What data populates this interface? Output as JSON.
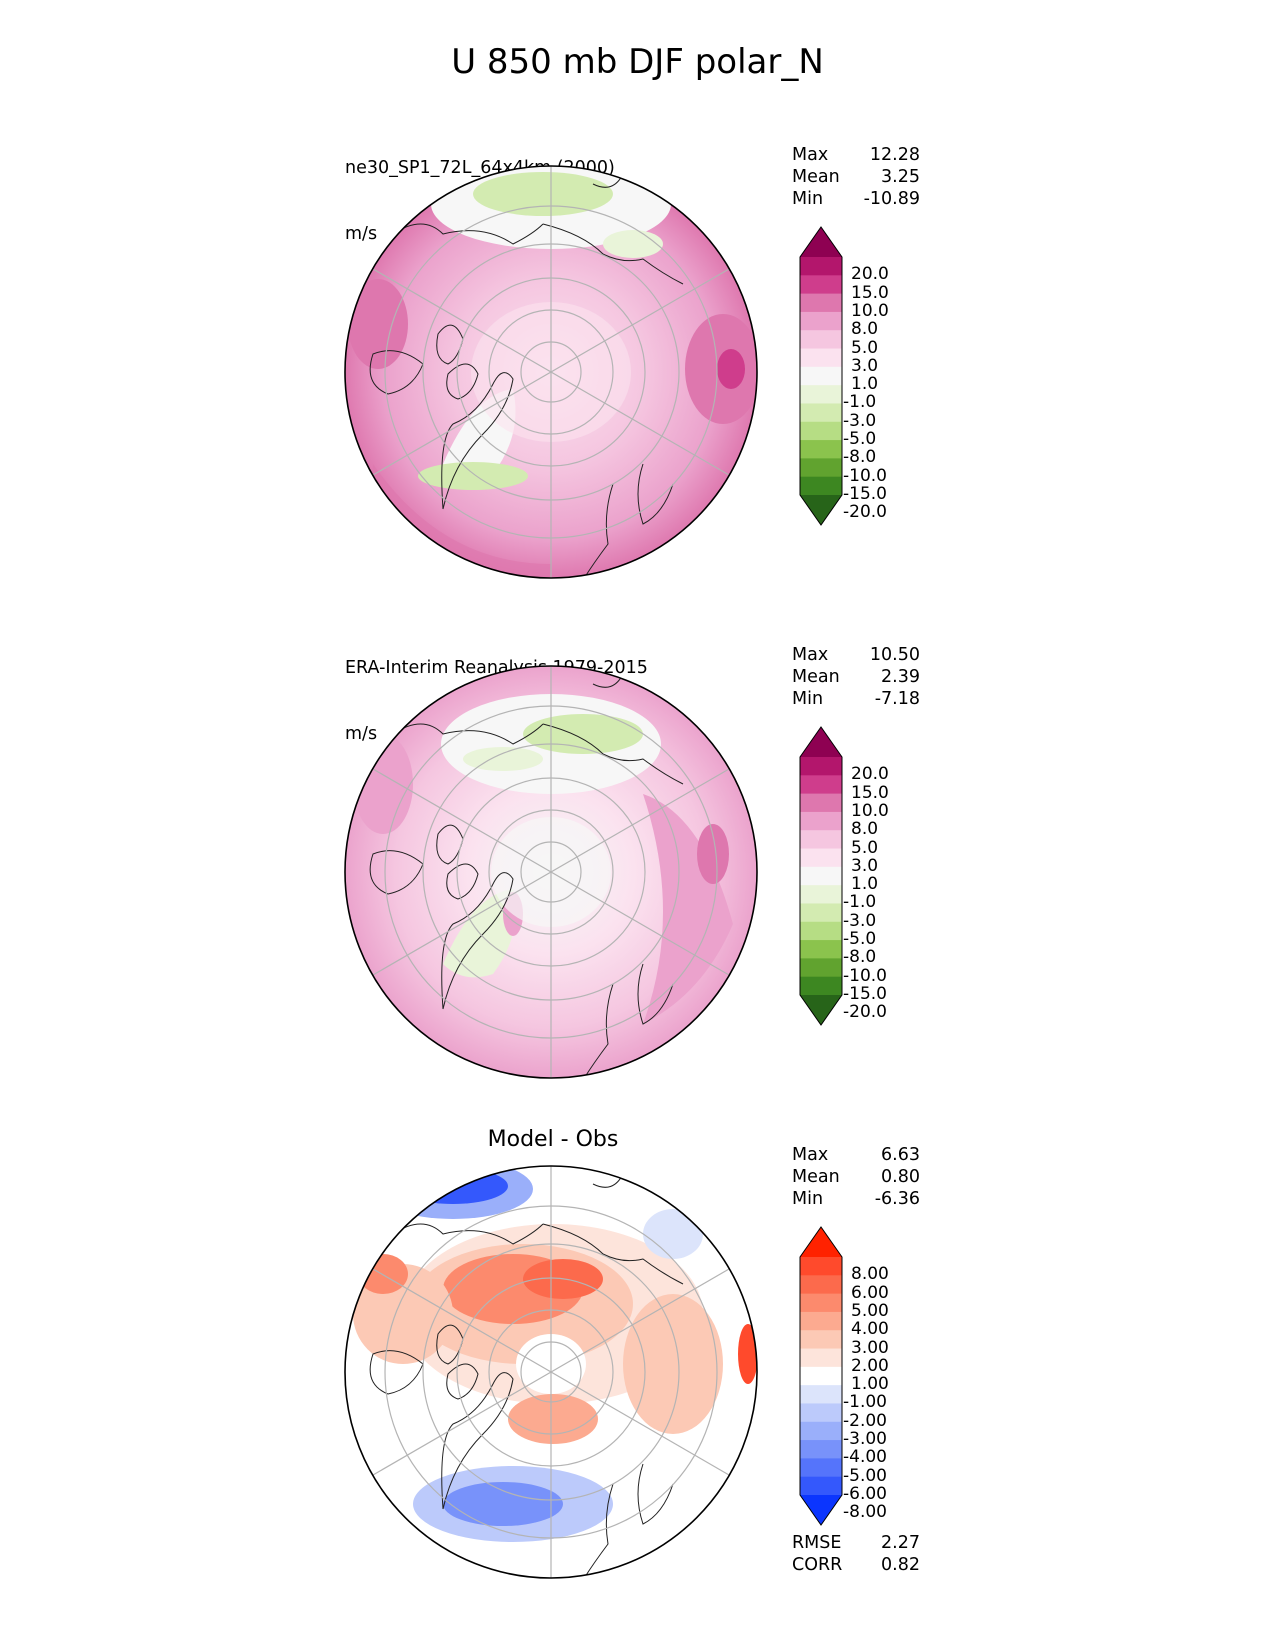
{
  "figure": {
    "title": "U 850 mb DJF polar_N"
  },
  "panels": [
    {
      "id": "model",
      "title": "ne30_SP1_72L_64x4km (2000)",
      "units": "m/s",
      "stats": [
        {
          "label": "Max",
          "value": "12.28"
        },
        {
          "label": "Mean",
          "value": "3.25"
        },
        {
          "label": "Min",
          "value": "-10.89"
        }
      ],
      "colorbar": {
        "labels": [
          "20.0",
          "15.0",
          "10.0",
          "8.0",
          "5.0",
          "3.0",
          "1.0",
          "-1.0",
          "-3.0",
          "-5.0",
          "-8.0",
          "-10.0",
          "-15.0",
          "-20.0"
        ],
        "colors": [
          "#8e0152",
          "#b3166c",
          "#cf3d8c",
          "#de77ae",
          "#eba2cc",
          "#f5c6e0",
          "#fbe2ef",
          "#f7f7f7",
          "#e9f4d9",
          "#d3ebb1",
          "#b6dd84",
          "#8bc34d",
          "#61a32f",
          "#3d8721",
          "#276419"
        ]
      }
    },
    {
      "id": "obs",
      "title": "ERA-Interim Reanalysis 1979-2015",
      "units": "m/s",
      "stats": [
        {
          "label": "Max",
          "value": "10.50"
        },
        {
          "label": "Mean",
          "value": "2.39"
        },
        {
          "label": "Min",
          "value": "-7.18"
        }
      ],
      "colorbar": {
        "labels": [
          "20.0",
          "15.0",
          "10.0",
          "8.0",
          "5.0",
          "3.0",
          "1.0",
          "-1.0",
          "-3.0",
          "-5.0",
          "-8.0",
          "-10.0",
          "-15.0",
          "-20.0"
        ],
        "colors": [
          "#8e0152",
          "#b3166c",
          "#cf3d8c",
          "#de77ae",
          "#eba2cc",
          "#f5c6e0",
          "#fbe2ef",
          "#f7f7f7",
          "#e9f4d9",
          "#d3ebb1",
          "#b6dd84",
          "#8bc34d",
          "#61a32f",
          "#3d8721",
          "#276419"
        ]
      }
    },
    {
      "id": "diff",
      "title": "Model - Obs",
      "stats": [
        {
          "label": "Max",
          "value": "6.63"
        },
        {
          "label": "Mean",
          "value": "0.80"
        },
        {
          "label": "Min",
          "value": "-6.36"
        }
      ],
      "metrics": [
        {
          "label": "RMSE",
          "value": "2.27"
        },
        {
          "label": "CORR",
          "value": "0.82"
        }
      ],
      "colorbar": {
        "labels": [
          "8.00",
          "6.00",
          "5.00",
          "4.00",
          "3.00",
          "2.00",
          "1.00",
          "-1.00",
          "-2.00",
          "-3.00",
          "-4.00",
          "-5.00",
          "-6.00",
          "-8.00"
        ],
        "colors": [
          "#ff2200",
          "#ff4a2c",
          "#fc6a4c",
          "#fc8a6d",
          "#fcaa90",
          "#fcc9b5",
          "#fde4db",
          "#ffffff",
          "#dce4fb",
          "#bccafb",
          "#9aaffa",
          "#7892fa",
          "#5574fb",
          "#3458fc",
          "#0b35fe"
        ]
      }
    }
  ],
  "colors": {
    "map_edge": "#000000",
    "graticule": "#b4b4b4",
    "coast": "#222222"
  }
}
